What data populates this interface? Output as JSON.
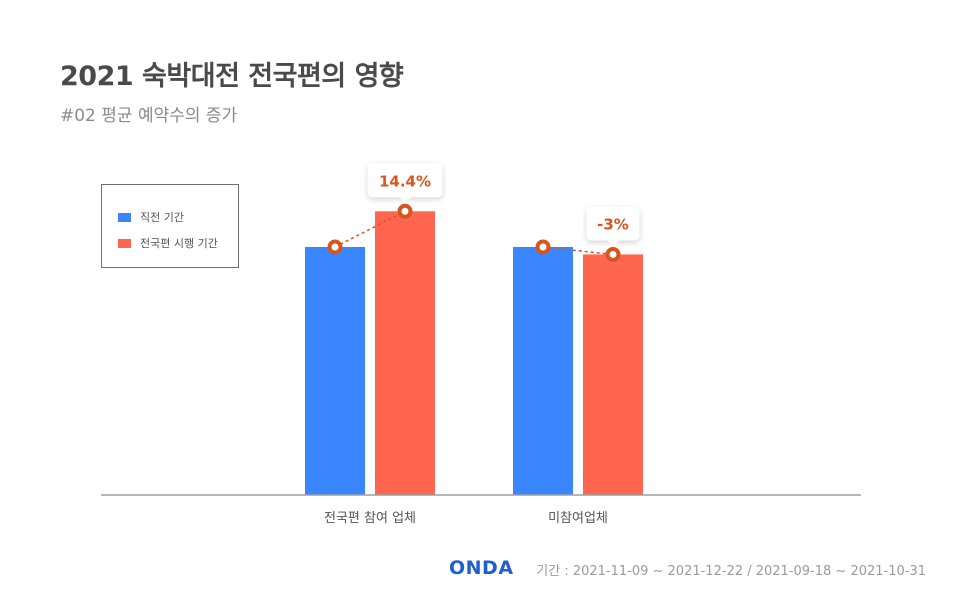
{
  "header": {
    "title": "2021 숙박대전 전국편의 영향",
    "subtitle": "#02 평균 예약수의 증가"
  },
  "legend": {
    "items": [
      {
        "label": "직전 기간",
        "color": "#3a86ff"
      },
      {
        "label": "전국편 시행 기간",
        "color": "#ff6650"
      }
    ]
  },
  "footer": {
    "logo": "ONDA",
    "period": "기간 : 2021-11-09 ~ 2021-12-22 / 2021-09-18 ~ 2021-10-31"
  },
  "chart_data": {
    "type": "bar",
    "categories": [
      "전국편 참여 업체",
      "미참여업체"
    ],
    "series": [
      {
        "name": "직전 기간",
        "values": [
          100,
          100
        ],
        "color": "#3a86ff"
      },
      {
        "name": "전국편 시행 기간",
        "values": [
          114.4,
          97
        ],
        "color": "#ff6650"
      }
    ],
    "annotations": [
      "14.4%",
      "-3%"
    ],
    "annotation_color": "#d9541e",
    "ylim": [
      0,
      140
    ],
    "grid": false,
    "legend_position": "top-left"
  }
}
